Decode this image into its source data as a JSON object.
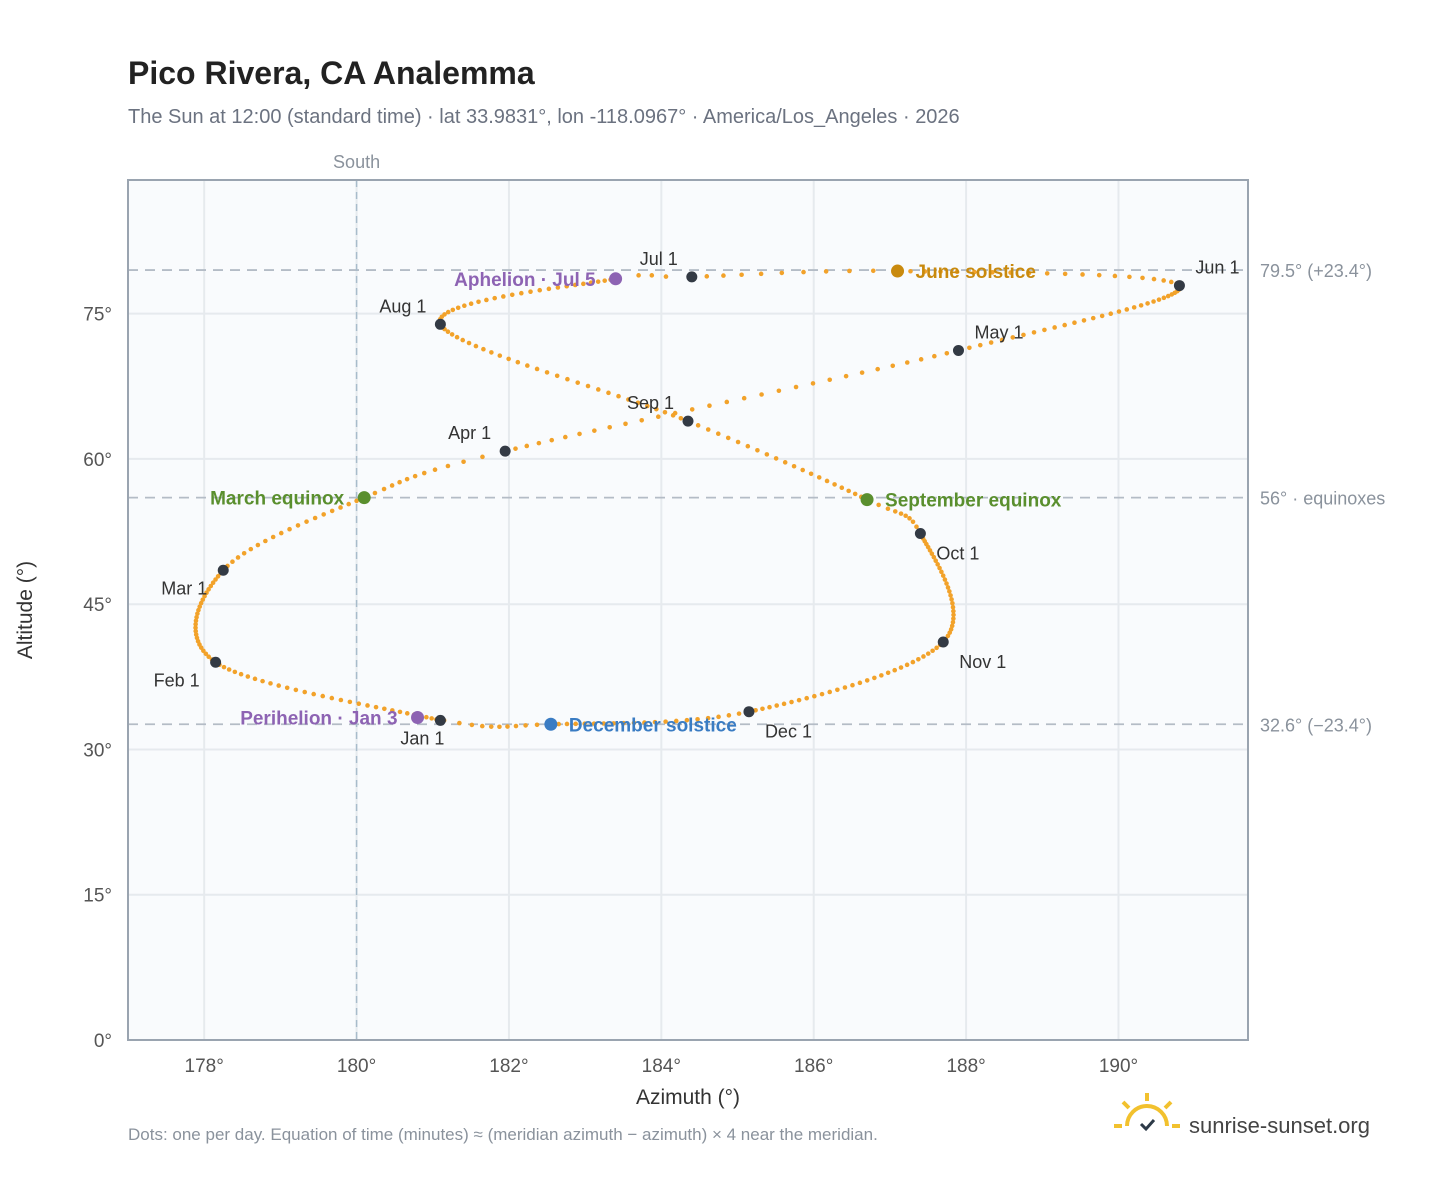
{
  "header": {
    "title": "Pico Rivera, CA Analemma",
    "subtitle": "The Sun at 12:00 (standard time) · lat 33.9831°, lon -118.0967° · America/Los_Angeles · 2026"
  },
  "footer": {
    "note": "Dots: one per day. Equation of time (minutes) ≈ (meridian azimuth − azimuth) × 4 near the meridian.",
    "brand": "sunrise-sunset.org"
  },
  "colors": {
    "curve": "#f2a22a",
    "month_dot": "#333a44",
    "june_solstice": "#c98a0e",
    "december_solstice": "#3a7cc3",
    "equinox": "#5a8f2e",
    "perihelion": "#8d63b3",
    "grid": "#e6eaee",
    "frame": "#9aa4b0",
    "plot_bg": "#f9fbfd",
    "ref_line": "#b4bcc6"
  },
  "chart_data": {
    "type": "scatter",
    "xlabel": "Azimuth (°)",
    "ylabel": "Altitude (°)",
    "xlim": [
      177.0,
      191.7
    ],
    "ylim": [
      0,
      88.8
    ],
    "xticks": [
      178,
      180,
      182,
      184,
      186,
      188,
      190
    ],
    "xtick_labels": [
      "178°",
      "180°",
      "182°",
      "184°",
      "186°",
      "188°",
      "190°"
    ],
    "yticks": [
      0,
      15,
      30,
      45,
      60,
      75
    ],
    "ytick_labels": [
      "0°",
      "15°",
      "30°",
      "45°",
      "60°",
      "75°"
    ],
    "grid": true,
    "meridian": {
      "azimuth": 180,
      "label": "South"
    },
    "reference_lines": [
      {
        "altitude": 79.5,
        "label": "79.5° (+23.4°)"
      },
      {
        "altitude": 56.0,
        "label": "56° · equinoxes"
      },
      {
        "altitude": 32.6,
        "label": "32.6° (−23.4°)"
      }
    ],
    "anchors": [
      {
        "day": 1,
        "az": 181.1,
        "alt": 33.0
      },
      {
        "day": 32,
        "az": 178.15,
        "alt": 39.0
      },
      {
        "day": 60,
        "az": 178.25,
        "alt": 48.5
      },
      {
        "day": 79,
        "az": 180.1,
        "alt": 56.0
      },
      {
        "day": 91,
        "az": 181.95,
        "alt": 60.8
      },
      {
        "day": 121,
        "az": 187.9,
        "alt": 71.2
      },
      {
        "day": 152,
        "az": 190.8,
        "alt": 77.9
      },
      {
        "day": 172,
        "az": 187.1,
        "alt": 79.4
      },
      {
        "day": 182,
        "az": 184.4,
        "alt": 78.8
      },
      {
        "day": 186,
        "az": 183.4,
        "alt": 78.6
      },
      {
        "day": 213,
        "az": 181.1,
        "alt": 73.9
      },
      {
        "day": 244,
        "az": 184.35,
        "alt": 63.9
      },
      {
        "day": 265,
        "az": 186.7,
        "alt": 55.8
      },
      {
        "day": 274,
        "az": 187.4,
        "alt": 52.3
      },
      {
        "day": 305,
        "az": 187.7,
        "alt": 41.1
      },
      {
        "day": 335,
        "az": 185.15,
        "alt": 33.9
      },
      {
        "day": 355,
        "az": 182.55,
        "alt": 32.6
      },
      {
        "day": 365,
        "az": 181.15,
        "alt": 33.0
      }
    ],
    "month_points": [
      {
        "label": "Jan 1",
        "az": 181.1,
        "alt": 33.0,
        "pos": "below"
      },
      {
        "label": "Feb 1",
        "az": 178.15,
        "alt": 39.0,
        "pos": "below-left"
      },
      {
        "label": "Mar 1",
        "az": 178.25,
        "alt": 48.5,
        "pos": "below-left"
      },
      {
        "label": "Apr 1",
        "az": 181.95,
        "alt": 60.8,
        "pos": "above-left"
      },
      {
        "label": "May 1",
        "az": 187.9,
        "alt": 71.2,
        "pos": "above-right"
      },
      {
        "label": "Jun 1",
        "az": 190.8,
        "alt": 77.9,
        "pos": "above-right"
      },
      {
        "label": "Jul 1",
        "az": 184.4,
        "alt": 78.8,
        "pos": "above-left"
      },
      {
        "label": "Aug 1",
        "az": 181.1,
        "alt": 73.9,
        "pos": "above-left"
      },
      {
        "label": "Sep 1",
        "az": 184.35,
        "alt": 63.9,
        "pos": "above-left"
      },
      {
        "label": "Oct 1",
        "az": 187.4,
        "alt": 52.3,
        "pos": "below-right"
      },
      {
        "label": "Nov 1",
        "az": 187.7,
        "alt": 41.1,
        "pos": "below-right"
      },
      {
        "label": "Dec 1",
        "az": 185.15,
        "alt": 33.9,
        "pos": "below-right"
      }
    ],
    "events": [
      {
        "label": "June solstice",
        "az": 187.1,
        "alt": 79.4,
        "color": "#c98a0e",
        "side": "right"
      },
      {
        "label": "December solstice",
        "az": 182.55,
        "alt": 32.6,
        "color": "#3a7cc3",
        "side": "right"
      },
      {
        "label": "March equinox",
        "az": 180.1,
        "alt": 56.0,
        "color": "#5a8f2e",
        "side": "left"
      },
      {
        "label": "September equinox",
        "az": 186.7,
        "alt": 55.8,
        "color": "#5a8f2e",
        "side": "right"
      },
      {
        "label": "Perihelion · Jan 3",
        "az": 180.8,
        "alt": 33.3,
        "color": "#8d63b3",
        "side": "left"
      },
      {
        "label": "Aphelion · Jul 5",
        "az": 183.4,
        "alt": 78.6,
        "color": "#8d63b3",
        "side": "left"
      }
    ]
  }
}
